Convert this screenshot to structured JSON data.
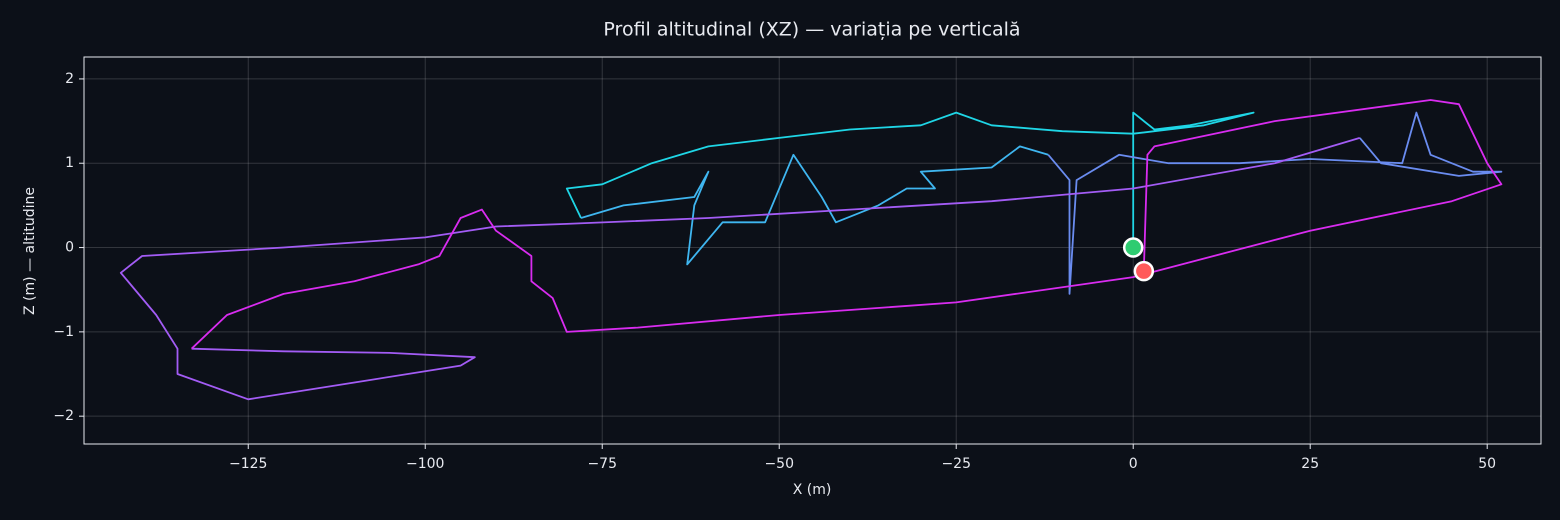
{
  "chart_data": {
    "type": "line",
    "title": "Profil altitudinal (XZ) — variația pe verticală",
    "xlabel": "X (m)",
    "ylabel": "Z (m) — altitudine",
    "xlim": [
      -148.2,
      57.6
    ],
    "ylim": [
      -2.33,
      2.26
    ],
    "xticks": [
      {
        "value": -125,
        "label": "−125"
      },
      {
        "value": -100,
        "label": "−100"
      },
      {
        "value": -75,
        "label": "−75"
      },
      {
        "value": -50,
        "label": "−50"
      },
      {
        "value": -25,
        "label": "−25"
      },
      0,
      25,
      50
    ],
    "yticks": [
      {
        "value": -2,
        "label": "−2"
      },
      {
        "value": -1,
        "label": "−1"
      },
      0,
      1,
      2
    ],
    "grid": true,
    "series": [
      {
        "color": "#1fd6e6",
        "x": [
          0,
          0,
          3,
          8,
          17,
          10,
          0,
          -10,
          -20,
          -25,
          -30,
          -40,
          -50,
          -60,
          -68,
          -75,
          -80,
          -78
        ],
        "values": [
          0,
          1.6,
          1.4,
          1.45,
          1.6,
          1.45,
          1.35,
          1.38,
          1.45,
          1.6,
          1.45,
          1.4,
          1.3,
          1.2,
          1.0,
          0.75,
          0.7,
          0.35
        ]
      },
      {
        "color": "#3fb6f0",
        "x": [
          -78,
          -72,
          -62,
          -60,
          -62,
          -63,
          -58,
          -52,
          -48,
          -44,
          -42,
          -36,
          -32,
          -28,
          -30,
          -20,
          -16,
          -12
        ],
        "values": [
          0.35,
          0.5,
          0.6,
          0.9,
          0.5,
          -0.2,
          0.3,
          0.3,
          1.1,
          0.6,
          0.3,
          0.5,
          0.7,
          0.7,
          0.9,
          0.95,
          1.2,
          1.1
        ]
      },
      {
        "color": "#6a8cf0",
        "x": [
          -12,
          -9,
          -9,
          -8,
          -2,
          5,
          15,
          25,
          38,
          40,
          42,
          48,
          52,
          46,
          35,
          32
        ],
        "values": [
          1.1,
          0.8,
          -0.55,
          0.8,
          1.1,
          1.0,
          1.0,
          1.05,
          1.0,
          1.6,
          1.1,
          0.9,
          0.9,
          0.85,
          1.0,
          1.3
        ]
      },
      {
        "color": "#a35cf5",
        "x": [
          32,
          20,
          0,
          -20,
          -40,
          -60,
          -80,
          -90,
          -100,
          -120,
          -140,
          -143,
          -138,
          -135,
          -135,
          -125,
          -110,
          -95,
          -93,
          -105,
          -120,
          -133
        ],
        "values": [
          1.3,
          1.0,
          0.7,
          0.55,
          0.45,
          0.35,
          0.28,
          0.25,
          0.12,
          0.0,
          -0.1,
          -0.3,
          -0.8,
          -1.2,
          -1.5,
          -1.8,
          -1.6,
          -1.4,
          -1.3,
          -1.25,
          -1.23,
          -1.2
        ]
      },
      {
        "color": "#d92cf0",
        "x": [
          -133,
          -128,
          -120,
          -110,
          -101,
          -98,
          -95,
          -92,
          -90,
          -85,
          -85,
          -82,
          -80,
          -70,
          -50,
          -25,
          0,
          25,
          45,
          52,
          50,
          46,
          42,
          20,
          3,
          2,
          1.5
        ],
        "values": [
          -1.2,
          -0.8,
          -0.55,
          -0.4,
          -0.2,
          -0.1,
          0.35,
          0.45,
          0.2,
          -0.1,
          -0.4,
          -0.6,
          -1.0,
          -0.95,
          -0.8,
          -0.65,
          -0.35,
          0.2,
          0.55,
          0.75,
          1.0,
          1.7,
          1.75,
          1.5,
          1.2,
          1.1,
          -0.28
        ]
      }
    ],
    "markers": [
      {
        "x": 0,
        "y": 0,
        "color": "#2ecc71"
      },
      {
        "x": 1.5,
        "y": -0.28,
        "color": "#ff5a5a"
      }
    ]
  }
}
